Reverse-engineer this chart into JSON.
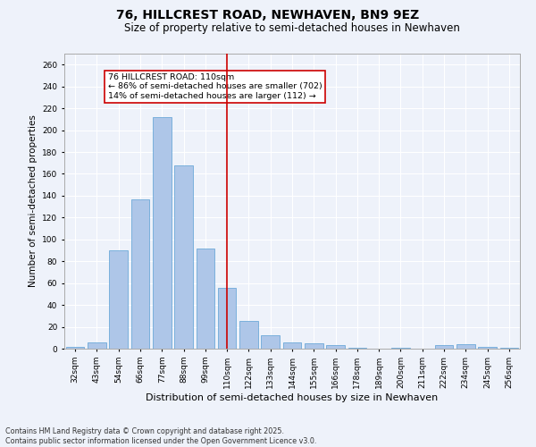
{
  "title1": "76, HILLCREST ROAD, NEWHAVEN, BN9 9EZ",
  "title2": "Size of property relative to semi-detached houses in Newhaven",
  "xlabel": "Distribution of semi-detached houses by size in Newhaven",
  "ylabel": "Number of semi-detached properties",
  "categories": [
    "32sqm",
    "43sqm",
    "54sqm",
    "66sqm",
    "77sqm",
    "88sqm",
    "99sqm",
    "110sqm",
    "122sqm",
    "133sqm",
    "144sqm",
    "155sqm",
    "166sqm",
    "178sqm",
    "189sqm",
    "200sqm",
    "211sqm",
    "222sqm",
    "234sqm",
    "245sqm",
    "256sqm"
  ],
  "values": [
    2,
    6,
    90,
    137,
    212,
    168,
    92,
    56,
    25,
    12,
    6,
    5,
    3,
    1,
    0,
    1,
    0,
    3,
    4,
    2,
    1
  ],
  "bar_color": "#aec6e8",
  "bar_edge_color": "#5a9fd4",
  "highlight_index": 7,
  "highlight_line_color": "#cc0000",
  "annotation_line1": "76 HILLCREST ROAD: 110sqm",
  "annotation_line2": "← 86% of semi-detached houses are smaller (702)",
  "annotation_line3": "14% of semi-detached houses are larger (112) →",
  "annotation_box_color": "#ffffff",
  "annotation_box_edge": "#cc0000",
  "ylim": [
    0,
    270
  ],
  "yticks": [
    0,
    20,
    40,
    60,
    80,
    100,
    120,
    140,
    160,
    180,
    200,
    220,
    240,
    260
  ],
  "bg_color": "#eef2fa",
  "footer1": "Contains HM Land Registry data © Crown copyright and database right 2025.",
  "footer2": "Contains public sector information licensed under the Open Government Licence v3.0.",
  "grid_color": "#ffffff",
  "title1_fontsize": 10,
  "title2_fontsize": 8.5,
  "xlabel_fontsize": 8,
  "ylabel_fontsize": 7.5,
  "tick_fontsize": 6.5,
  "annotation_fontsize": 6.8,
  "footer_fontsize": 5.8
}
